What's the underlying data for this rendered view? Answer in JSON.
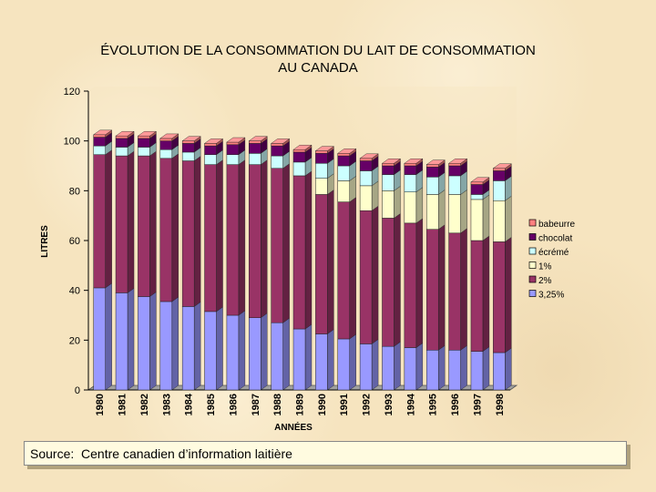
{
  "chart_data": {
    "type": "bar",
    "stacked": true,
    "title_line1": "ÉVOLUTION DE LA CONSOMMATION DU LAIT DE CONSOMMATION",
    "title_line2": "AU CANADA",
    "xlabel": "ANNÉES",
    "ylabel": "LITRES",
    "ylim": [
      0,
      120
    ],
    "yticks": [
      "0",
      "20",
      "40",
      "60",
      "80",
      "100",
      "120"
    ],
    "legend_position": "right",
    "categories": [
      "1980",
      "1981",
      "1982",
      "1983",
      "1984",
      "1985",
      "1986",
      "1987",
      "1988",
      "1989",
      "1990",
      "1991",
      "1992",
      "1993",
      "1994",
      "1995",
      "1996",
      "1997",
      "1998"
    ],
    "series": [
      {
        "name": "3,25%",
        "color": "#9999ff",
        "values": [
          41,
          39,
          37.5,
          35.5,
          33.5,
          31.5,
          30,
          29,
          27,
          24.5,
          22.5,
          20.5,
          18.5,
          17.5,
          17,
          16,
          16,
          15.5,
          15
        ]
      },
      {
        "name": "2%",
        "color": "#993366",
        "values": [
          53.5,
          55,
          56.5,
          57.5,
          58.5,
          59,
          60.5,
          61.5,
          62,
          61.5,
          56,
          55,
          53.5,
          51.5,
          50,
          48.5,
          47,
          44.5,
          44.5
        ]
      },
      {
        "name": "1%",
        "color": "#ffffcc",
        "values": [
          0,
          0,
          0,
          0,
          0,
          0,
          0,
          0,
          0,
          0,
          6.5,
          8.5,
          10,
          11,
          12.5,
          14,
          15.5,
          16.5,
          16.5
        ]
      },
      {
        "name": "écrémé",
        "color": "#ccffff",
        "values": [
          3.5,
          3.5,
          3.5,
          3.5,
          3.5,
          4,
          4,
          4.5,
          5,
          5.5,
          6,
          6,
          6,
          6.5,
          7,
          7,
          7.5,
          2,
          8
        ]
      },
      {
        "name": "chocolat",
        "color": "#660066",
        "values": [
          3.5,
          3.5,
          3.5,
          3.5,
          3.5,
          3.5,
          4,
          4,
          4,
          4,
          4,
          4,
          4,
          3.5,
          3.5,
          4,
          4,
          4,
          4
        ]
      },
      {
        "name": "babeurre",
        "color": "#ff8080",
        "values": [
          1,
          1,
          1,
          1,
          1,
          1,
          1,
          1,
          1,
          1,
          1,
          1,
          1,
          1,
          1,
          1,
          1,
          1,
          1
        ]
      }
    ]
  },
  "source": "Source:  Centre canadien d’information laitière"
}
